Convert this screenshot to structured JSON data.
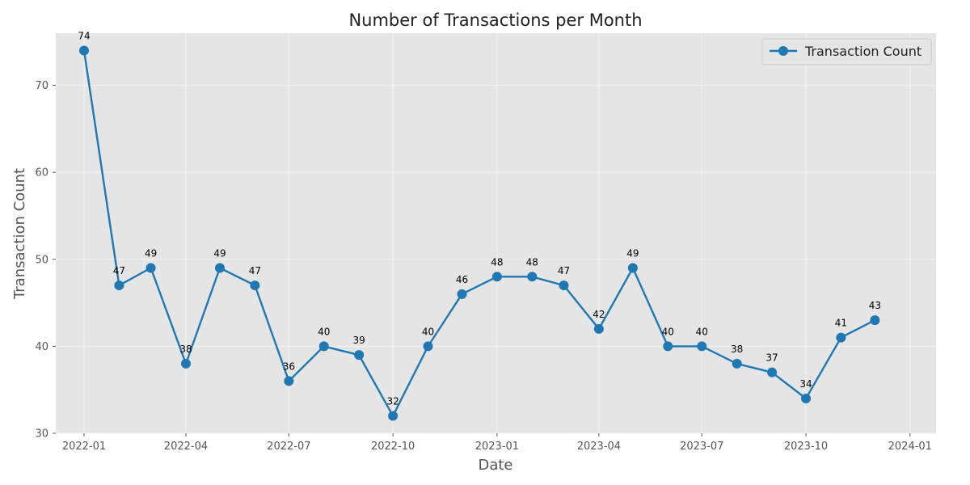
{
  "chart_data": {
    "type": "line",
    "title": "Number of Transactions per Month",
    "xlabel": "Date",
    "ylabel": "Transaction Count",
    "x": [
      "2022-01-01",
      "2022-02-01",
      "2022-03-01",
      "2022-04-01",
      "2022-05-01",
      "2022-06-01",
      "2022-07-01",
      "2022-08-01",
      "2022-09-01",
      "2022-10-01",
      "2022-11-01",
      "2022-12-01",
      "2023-01-01",
      "2023-02-01",
      "2023-03-01",
      "2023-04-01",
      "2023-05-01",
      "2023-06-01",
      "2023-07-01",
      "2023-08-01",
      "2023-09-01",
      "2023-10-01",
      "2023-11-01",
      "2023-12-01"
    ],
    "series": [
      {
        "name": "Transaction Count",
        "values": [
          74,
          47,
          49,
          38,
          49,
          47,
          36,
          40,
          39,
          32,
          40,
          46,
          48,
          48,
          47,
          42,
          49,
          40,
          40,
          38,
          37,
          34,
          41,
          43
        ]
      }
    ],
    "xlim": [
      "2021-12-07",
      "2024-01-24"
    ],
    "ylim": [
      30,
      76
    ],
    "yticks": [
      30,
      40,
      50,
      60,
      70
    ],
    "xticks": [
      "2022-01",
      "2022-04",
      "2022-07",
      "2022-10",
      "2023-01",
      "2023-04",
      "2023-07",
      "2023-10",
      "2024-01"
    ],
    "grid": true,
    "legend_position": "top-right",
    "line_color": "#1f77b4",
    "plot_background": "#e5e5e5",
    "grid_color": "#f2f2f2"
  }
}
